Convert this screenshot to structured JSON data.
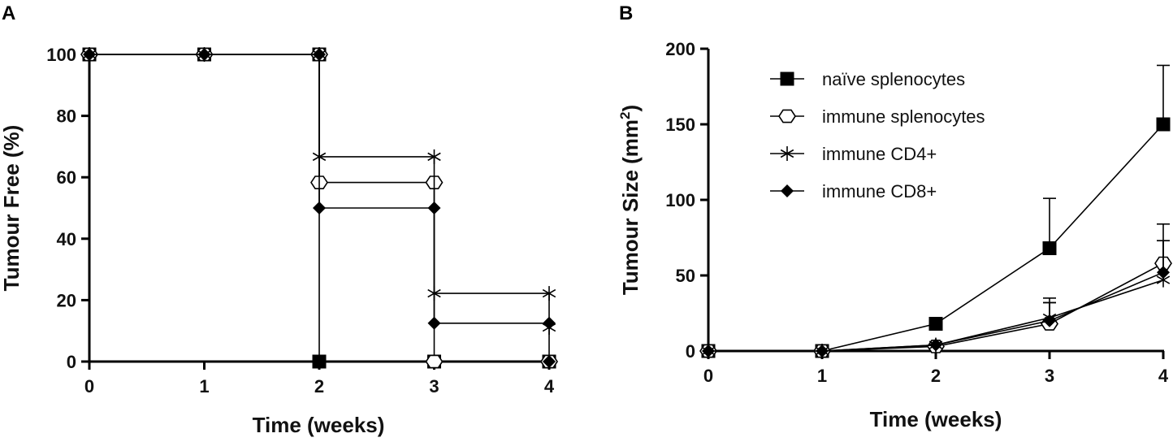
{
  "panels": {
    "a_letter": "A",
    "b_letter": "B"
  },
  "chart_data": [
    {
      "type": "line",
      "subtype": "step",
      "xlabel": "Time (weeks)",
      "ylabel": "Tumour Free (%)",
      "x_ticks": [
        "0",
        "1",
        "2",
        "3",
        "4"
      ],
      "y_ticks": [
        "0",
        "20",
        "40",
        "60",
        "80",
        "100"
      ],
      "xlim": [
        0,
        4
      ],
      "ylim": [
        0,
        100
      ],
      "grid": false,
      "legend": "none",
      "series": [
        {
          "marker": "square",
          "x": [
            0,
            1,
            2,
            2,
            3,
            4
          ],
          "y": [
            100,
            100,
            100,
            0,
            0,
            0
          ]
        },
        {
          "marker": "hexagon",
          "x": [
            0,
            1,
            2,
            2,
            3,
            3,
            4
          ],
          "y": [
            100,
            100,
            100,
            58.3,
            58.3,
            0,
            0
          ]
        },
        {
          "marker": "asterisk",
          "x": [
            0,
            1,
            2,
            2,
            3,
            3,
            4,
            4
          ],
          "y": [
            100,
            100,
            100,
            66.7,
            66.7,
            22.2,
            22.2,
            11.1
          ]
        },
        {
          "marker": "diamond",
          "x": [
            0,
            1,
            2,
            2,
            3,
            3,
            4,
            4
          ],
          "y": [
            100,
            100,
            100,
            50,
            50,
            12.5,
            12.5,
            0
          ]
        }
      ]
    },
    {
      "type": "line",
      "xlabel": "Time (weeks)",
      "ylabel_main": "Tumour Size (mm",
      "ylabel_sup": "2",
      "ylabel_end": ")",
      "x_ticks": [
        "0",
        "1",
        "2",
        "3",
        "4"
      ],
      "y_ticks": [
        "0",
        "50",
        "100",
        "150",
        "200"
      ],
      "xlim": [
        0,
        4
      ],
      "ylim": [
        0,
        200
      ],
      "grid": false,
      "legend": "top-left",
      "x": [
        0,
        1,
        2,
        3,
        4
      ],
      "series": [
        {
          "name": "naïve splenocytes",
          "marker": "square",
          "y": [
            0,
            0,
            18,
            68,
            150
          ],
          "err": [
            0,
            0,
            0,
            33,
            39
          ]
        },
        {
          "name": "immune splenocytes",
          "marker": "hexagon",
          "y": [
            0,
            0,
            3,
            18,
            58
          ],
          "err": [
            0,
            0,
            0,
            14,
            26
          ]
        },
        {
          "name": "immune CD4+",
          "marker": "asterisk",
          "y": [
            0,
            0,
            4,
            22,
            47
          ],
          "err": [
            0,
            0,
            0,
            13,
            26
          ]
        },
        {
          "name": "immune CD8+",
          "marker": "diamond",
          "y": [
            0,
            0,
            4,
            20,
            52
          ],
          "err": [
            0,
            0,
            0,
            12,
            21
          ]
        }
      ]
    }
  ]
}
